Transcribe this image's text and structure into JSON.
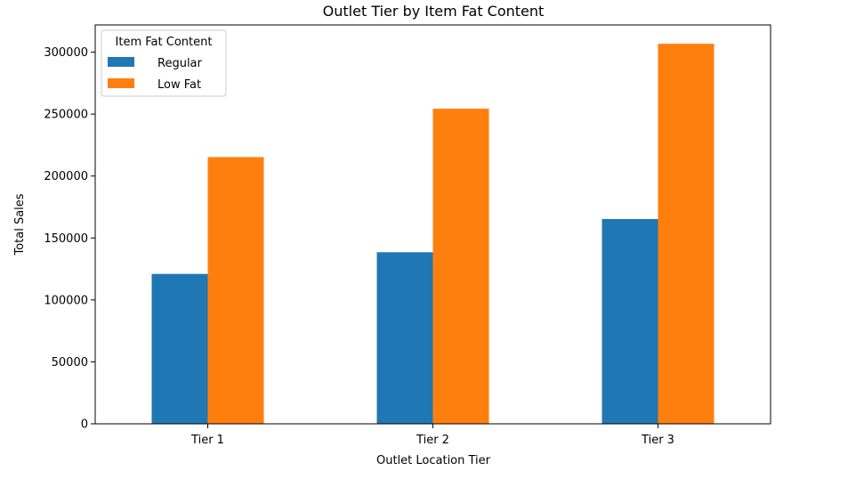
{
  "chart_data": {
    "type": "bar",
    "title": "Outlet Tier by Item Fat Content",
    "xlabel": "Outlet Location Tier",
    "ylabel": "Total Sales",
    "categories": [
      "Tier 1",
      "Tier 2",
      "Tier 3"
    ],
    "series": [
      {
        "name": "Regular",
        "color": "#1f77b4",
        "values": [
          121000,
          138500,
          165300
        ]
      },
      {
        "name": "Low Fat",
        "color": "#ff7f0e",
        "values": [
          215300,
          254400,
          306800
        ]
      }
    ],
    "ylim": [
      0,
      322000
    ],
    "yticks": [
      0,
      50000,
      100000,
      150000,
      200000,
      250000,
      300000
    ],
    "ytick_labels": [
      "0",
      "50000",
      "100000",
      "150000",
      "200000",
      "250000",
      "300000"
    ],
    "legend": {
      "title": "Item Fat Content",
      "position": "top-left"
    },
    "grid": false
  }
}
